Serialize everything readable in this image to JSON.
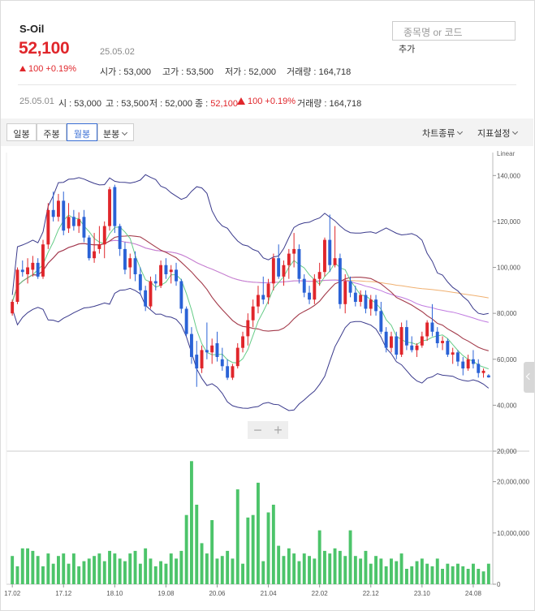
{
  "stock": {
    "name": "S-Oil",
    "price": "52,100",
    "date": "25.05.02",
    "change": "100 +0.19%",
    "open": "시가 : 53,000",
    "high": "고가 : 53,500",
    "low": "저가 : 52,000",
    "volume": "거래량 : 164,718"
  },
  "search": {
    "placeholder": "종목명 or 코드",
    "add_label": "추가"
  },
  "prev_day": {
    "date": "25.05.01",
    "open": "시 : 53,000",
    "high": "고 : 53,500",
    "low": "저 : 52,000",
    "close_label": "종 : ",
    "close_value": "52,100",
    "change": "100 +0.19%",
    "volume": "거래량 : 164,718"
  },
  "toolbar": {
    "tabs": [
      "일봉",
      "주봉",
      "월봉",
      "분봉"
    ],
    "active_tab": "월봉",
    "chart_type": "차트종류",
    "indicator": "지표설정"
  },
  "zoom": {
    "minus": "−",
    "plus": "+"
  },
  "colors": {
    "up": "#e0262b",
    "down": "#2a62d6",
    "volume": "#4cc46a",
    "bollinger": "#3a3a8c",
    "ma_short": "#66cc88",
    "ma_mid": "#a33a4a",
    "ma_long_a": "#c07ae0",
    "ma_long_b": "#f0b070"
  },
  "chart_data": {
    "type": "candlestick",
    "scale_label": "Linear",
    "price_ticks": [
      "140,000",
      "120,000",
      "100,000",
      "80,000",
      "60,000",
      "40,000",
      "20,000"
    ],
    "volume_ticks": [
      "20,000,000",
      "10,000,000",
      "0"
    ],
    "x_ticks": [
      "17.02",
      "17.12",
      "18.10",
      "19.08",
      "20.06",
      "21.04",
      "22.02",
      "22.12",
      "23.10",
      "24.08"
    ],
    "price_range": [
      20000,
      150000
    ],
    "volume_range": [
      0,
      25000000
    ],
    "candles": [
      {
        "o": 80000,
        "h": 86000,
        "l": 79000,
        "c": 85000
      },
      {
        "o": 85000,
        "h": 100000,
        "l": 84000,
        "c": 99000
      },
      {
        "o": 99000,
        "h": 103000,
        "l": 96000,
        "c": 98000
      },
      {
        "o": 97000,
        "h": 104000,
        "l": 93000,
        "c": 100000
      },
      {
        "o": 99000,
        "h": 105000,
        "l": 96000,
        "c": 102000
      },
      {
        "o": 102000,
        "h": 104000,
        "l": 95000,
        "c": 96000
      },
      {
        "o": 96000,
        "h": 112000,
        "l": 95000,
        "c": 110000
      },
      {
        "o": 110000,
        "h": 128000,
        "l": 108000,
        "c": 125000
      },
      {
        "o": 125000,
        "h": 133000,
        "l": 120000,
        "c": 122000
      },
      {
        "o": 122000,
        "h": 132000,
        "l": 120000,
        "c": 129000
      },
      {
        "o": 129000,
        "h": 133000,
        "l": 114000,
        "c": 116000
      },
      {
        "o": 117000,
        "h": 128000,
        "l": 115000,
        "c": 122000
      },
      {
        "o": 122000,
        "h": 125000,
        "l": 116000,
        "c": 118000
      },
      {
        "o": 118000,
        "h": 124000,
        "l": 115000,
        "c": 121000
      },
      {
        "o": 122000,
        "h": 125000,
        "l": 111000,
        "c": 113000
      },
      {
        "o": 113000,
        "h": 114000,
        "l": 103000,
        "c": 104000
      },
      {
        "o": 104000,
        "h": 115000,
        "l": 102000,
        "c": 107000
      },
      {
        "o": 108000,
        "h": 118000,
        "l": 106000,
        "c": 110000
      },
      {
        "o": 110000,
        "h": 120000,
        "l": 104000,
        "c": 118000
      },
      {
        "o": 118000,
        "h": 135000,
        "l": 116000,
        "c": 134000
      },
      {
        "o": 135000,
        "h": 136000,
        "l": 115000,
        "c": 118000
      },
      {
        "o": 118000,
        "h": 119000,
        "l": 105000,
        "c": 108000
      },
      {
        "o": 108000,
        "h": 111000,
        "l": 97000,
        "c": 99000
      },
      {
        "o": 100000,
        "h": 106000,
        "l": 95000,
        "c": 104000
      },
      {
        "o": 104000,
        "h": 107000,
        "l": 94000,
        "c": 97000
      },
      {
        "o": 97000,
        "h": 100000,
        "l": 88000,
        "c": 90000
      },
      {
        "o": 90000,
        "h": 92000,
        "l": 81000,
        "c": 83000
      },
      {
        "o": 83000,
        "h": 96000,
        "l": 82000,
        "c": 94000
      },
      {
        "o": 94000,
        "h": 97000,
        "l": 90000,
        "c": 93000
      },
      {
        "o": 92000,
        "h": 103000,
        "l": 91000,
        "c": 101000
      },
      {
        "o": 101000,
        "h": 104000,
        "l": 95000,
        "c": 97000
      },
      {
        "o": 98000,
        "h": 101000,
        "l": 93000,
        "c": 99000
      },
      {
        "o": 99000,
        "h": 102000,
        "l": 92000,
        "c": 94000
      },
      {
        "o": 94000,
        "h": 95000,
        "l": 80000,
        "c": 82000
      },
      {
        "o": 82000,
        "h": 83000,
        "l": 70000,
        "c": 71000
      },
      {
        "o": 71000,
        "h": 74000,
        "l": 58000,
        "c": 61000
      },
      {
        "o": 62000,
        "h": 68000,
        "l": 48000,
        "c": 56000
      },
      {
        "o": 56000,
        "h": 66000,
        "l": 54000,
        "c": 64000
      },
      {
        "o": 64000,
        "h": 76000,
        "l": 60000,
        "c": 63000
      },
      {
        "o": 63000,
        "h": 69000,
        "l": 58000,
        "c": 66000
      },
      {
        "o": 67000,
        "h": 72000,
        "l": 59000,
        "c": 61000
      },
      {
        "o": 60000,
        "h": 65000,
        "l": 55000,
        "c": 57000
      },
      {
        "o": 57000,
        "h": 60000,
        "l": 51000,
        "c": 52000
      },
      {
        "o": 52000,
        "h": 58000,
        "l": 51000,
        "c": 57000
      },
      {
        "o": 57000,
        "h": 67000,
        "l": 56000,
        "c": 65000
      },
      {
        "o": 65000,
        "h": 72000,
        "l": 63000,
        "c": 70000
      },
      {
        "o": 70000,
        "h": 80000,
        "l": 66000,
        "c": 77000
      },
      {
        "o": 77000,
        "h": 86000,
        "l": 74000,
        "c": 83000
      },
      {
        "o": 83000,
        "h": 92000,
        "l": 80000,
        "c": 88000
      },
      {
        "o": 88000,
        "h": 96000,
        "l": 84000,
        "c": 86000
      },
      {
        "o": 87000,
        "h": 95000,
        "l": 84000,
        "c": 93000
      },
      {
        "o": 93000,
        "h": 106000,
        "l": 90000,
        "c": 104000
      },
      {
        "o": 104000,
        "h": 110000,
        "l": 95000,
        "c": 96000
      },
      {
        "o": 96000,
        "h": 103000,
        "l": 92000,
        "c": 101000
      },
      {
        "o": 101000,
        "h": 108000,
        "l": 95000,
        "c": 106000
      },
      {
        "o": 106000,
        "h": 115000,
        "l": 100000,
        "c": 108000
      },
      {
        "o": 108000,
        "h": 110000,
        "l": 93000,
        "c": 95000
      },
      {
        "o": 95000,
        "h": 97000,
        "l": 87000,
        "c": 89000
      },
      {
        "o": 89000,
        "h": 92000,
        "l": 84000,
        "c": 86000
      },
      {
        "o": 86000,
        "h": 97000,
        "l": 84000,
        "c": 95000
      },
      {
        "o": 95000,
        "h": 102000,
        "l": 92000,
        "c": 98000
      },
      {
        "o": 98000,
        "h": 113000,
        "l": 96000,
        "c": 112000
      },
      {
        "o": 112000,
        "h": 123000,
        "l": 98000,
        "c": 101000
      },
      {
        "o": 101000,
        "h": 118000,
        "l": 100000,
        "c": 104000
      },
      {
        "o": 104000,
        "h": 106000,
        "l": 82000,
        "c": 84000
      },
      {
        "o": 84000,
        "h": 97000,
        "l": 80000,
        "c": 94000
      },
      {
        "o": 94000,
        "h": 96000,
        "l": 87000,
        "c": 89000
      },
      {
        "o": 89000,
        "h": 92000,
        "l": 83000,
        "c": 85000
      },
      {
        "o": 85000,
        "h": 90000,
        "l": 83000,
        "c": 88000
      },
      {
        "o": 88000,
        "h": 90000,
        "l": 80000,
        "c": 82000
      },
      {
        "o": 82000,
        "h": 88000,
        "l": 79000,
        "c": 86000
      },
      {
        "o": 86000,
        "h": 88000,
        "l": 79000,
        "c": 81000
      },
      {
        "o": 81000,
        "h": 85000,
        "l": 71000,
        "c": 72000
      },
      {
        "o": 72000,
        "h": 74000,
        "l": 63000,
        "c": 65000
      },
      {
        "o": 65000,
        "h": 72000,
        "l": 63000,
        "c": 70000
      },
      {
        "o": 70000,
        "h": 72000,
        "l": 60000,
        "c": 62000
      },
      {
        "o": 62000,
        "h": 76000,
        "l": 61000,
        "c": 74000
      },
      {
        "o": 74000,
        "h": 77000,
        "l": 64000,
        "c": 66000
      },
      {
        "o": 66000,
        "h": 70000,
        "l": 63000,
        "c": 64000
      },
      {
        "o": 64000,
        "h": 67000,
        "l": 61000,
        "c": 66000
      },
      {
        "o": 66000,
        "h": 72000,
        "l": 65000,
        "c": 70000
      },
      {
        "o": 70000,
        "h": 77000,
        "l": 68000,
        "c": 76000
      },
      {
        "o": 76000,
        "h": 84000,
        "l": 70000,
        "c": 72000
      },
      {
        "o": 72000,
        "h": 74000,
        "l": 65000,
        "c": 67000
      },
      {
        "o": 67000,
        "h": 70000,
        "l": 64000,
        "c": 68000
      },
      {
        "o": 68000,
        "h": 69000,
        "l": 61000,
        "c": 62000
      },
      {
        "o": 62000,
        "h": 65000,
        "l": 58000,
        "c": 63000
      },
      {
        "o": 63000,
        "h": 64000,
        "l": 57000,
        "c": 59000
      },
      {
        "o": 59000,
        "h": 61000,
        "l": 53000,
        "c": 56000
      },
      {
        "o": 56000,
        "h": 62000,
        "l": 55000,
        "c": 60000
      },
      {
        "o": 60000,
        "h": 64000,
        "l": 56000,
        "c": 58000
      },
      {
        "o": 58000,
        "h": 60000,
        "l": 52000,
        "c": 54000
      },
      {
        "o": 54000,
        "h": 56000,
        "l": 52000,
        "c": 55000
      },
      {
        "o": 53000,
        "h": 53500,
        "l": 52000,
        "c": 52100
      }
    ],
    "volumes": [
      5500000,
      3500000,
      7000000,
      7000000,
      6500000,
      5500000,
      3500000,
      6000000,
      4000000,
      5500000,
      6000000,
      4000000,
      6000000,
      3500000,
      4500000,
      5000000,
      5500000,
      6000000,
      4500000,
      6500000,
      6000000,
      5000000,
      4500000,
      6000000,
      6500000,
      4000000,
      7000000,
      5000000,
      3500000,
      4500000,
      4000000,
      6000000,
      5000000,
      6500000,
      13500000,
      24000000,
      15500000,
      8000000,
      6000000,
      12500000,
      5000000,
      5500000,
      6500000,
      5000000,
      18500000,
      4000000,
      13000000,
      13500000,
      19800000,
      4500000,
      14000000,
      15500000,
      7500000,
      5500000,
      7000000,
      6000000,
      4500000,
      6000000,
      5500000,
      5000000,
      10500000,
      6500000,
      6000000,
      7000000,
      6500000,
      5500000,
      10500000,
      5500000,
      5000000,
      6500000,
      4000000,
      5500000,
      5000000,
      3500000,
      5000000,
      4500000,
      6000000,
      3000000,
      3500000,
      4500000,
      5000000,
      4000000,
      3500000,
      5000000,
      3000000,
      4000000,
      3500000,
      4000000,
      3500000,
      3000000,
      4000000,
      3000000,
      2500000,
      4000000
    ],
    "bollinger_upper": [
      95000,
      103000,
      112000,
      122000,
      131000,
      138000,
      143000,
      141000,
      140000,
      139000,
      138000,
      137000,
      137000,
      135000,
      130000,
      123000,
      117000,
      112000,
      110000,
      108000,
      107000,
      108000,
      112000,
      118000,
      123000,
      128000,
      130000,
      124000,
      115000,
      111000,
      110000,
      109000,
      112000,
      118000,
      115000,
      106000,
      104000,
      104000,
      105000,
      106000,
      107000,
      106000,
      106000,
      107000,
      111000,
      114000,
      117000,
      117000,
      116000,
      118000,
      120000,
      121000,
      122000,
      122000,
      121000,
      120000,
      118000,
      116000,
      115000,
      116000,
      116000,
      116000,
      117000,
      114000,
      108000,
      103000,
      98000,
      92000,
      88000,
      86000,
      85000,
      84000
    ],
    "bollinger_lower": [
      57000,
      58000,
      57000,
      55000,
      55000,
      56000,
      58000,
      66000,
      70000,
      74000,
      80000,
      84000,
      87000,
      88000,
      88000,
      88000,
      86000,
      84000,
      81000,
      78000,
      74000,
      68000,
      60000,
      52000,
      46000,
      44000,
      43000,
      43000,
      44000,
      47000,
      52000,
      57000,
      61000,
      64000,
      67000,
      69000,
      70000,
      69000,
      66000,
      62000,
      61000,
      62000,
      63000,
      63000,
      62000,
      60000,
      58000,
      56000,
      54000,
      52000,
      50000,
      48000,
      47000
    ],
    "ma_short": [],
    "ma_mid": [],
    "ma_long_a": [],
    "ma_long_b": []
  }
}
